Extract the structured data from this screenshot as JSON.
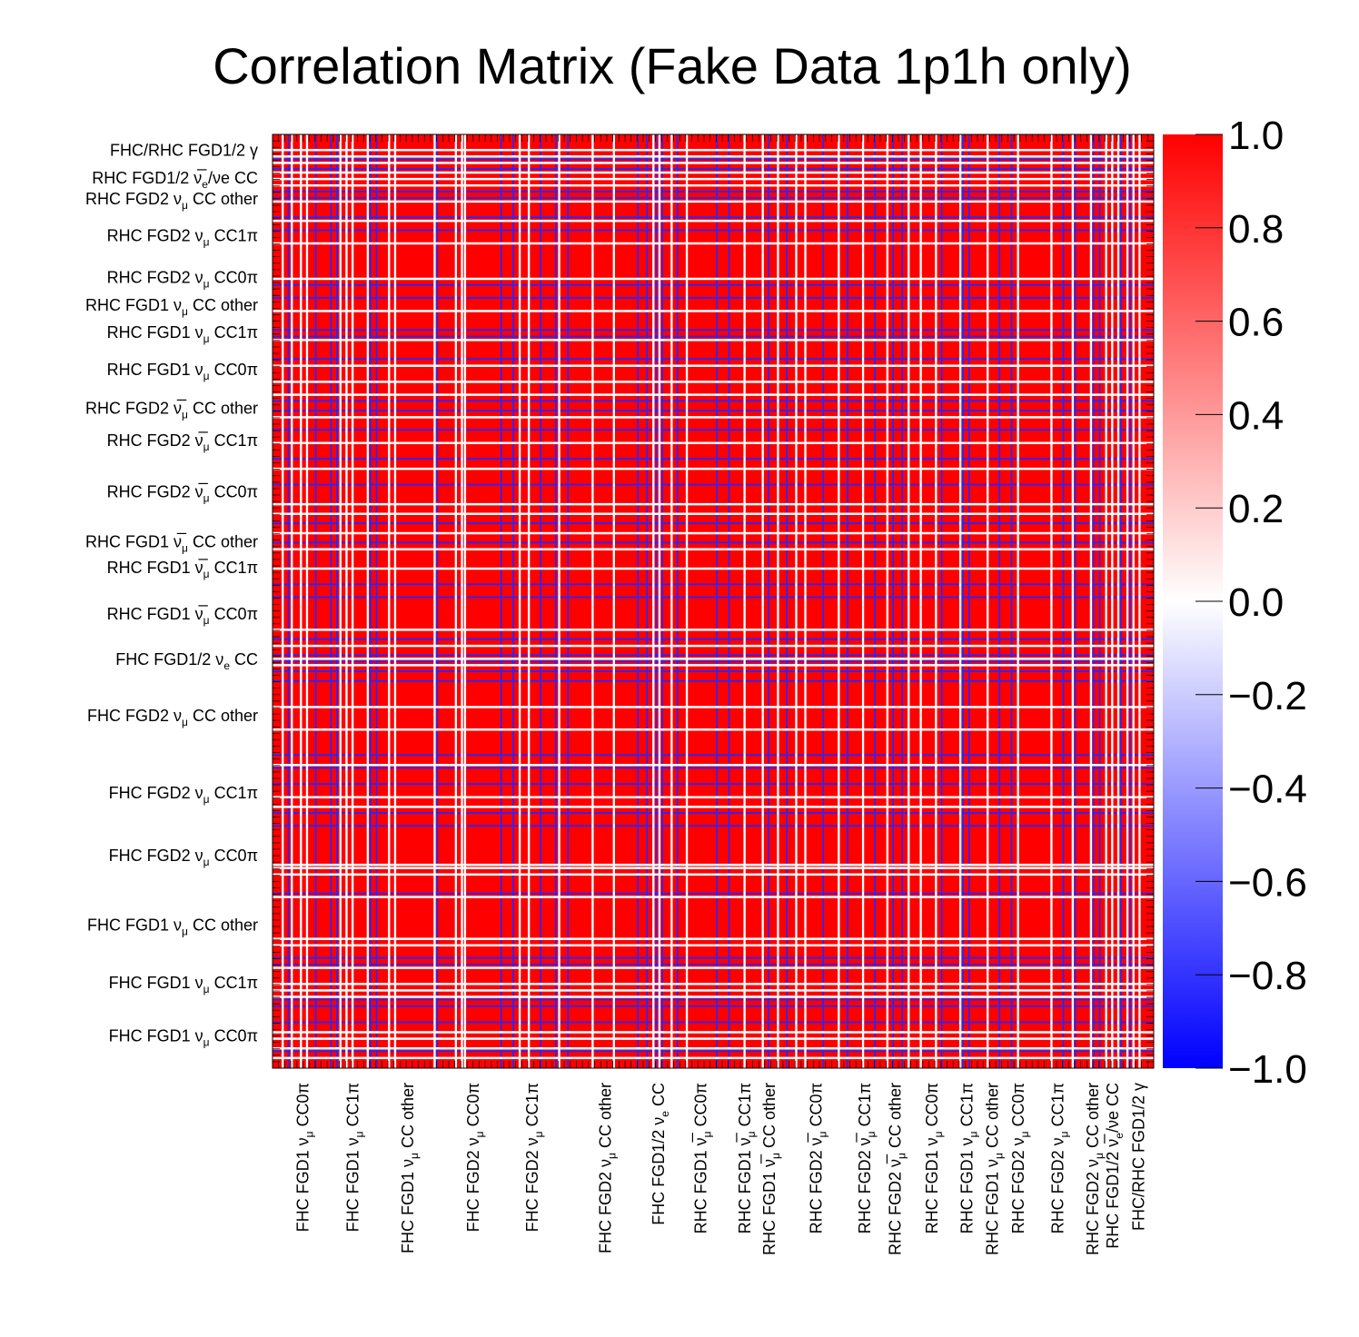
{
  "chart_data": {
    "type": "heatmap",
    "title": "Correlation Matrix (Fake Data 1p1h only)",
    "zlim": [
      -1.0,
      1.0
    ],
    "color_scale": {
      "min_color": "#0000ff",
      "mid_color": "#ffffff",
      "max_color": "#ff0000"
    },
    "colorbar_ticks": [
      "1.0",
      "0.8",
      "0.6",
      "0.4",
      "0.2",
      "0.0",
      "−0.2",
      "−0.4",
      "−0.6",
      "−0.8",
      "−1.0"
    ],
    "colorbar_values": [
      1.0,
      0.8,
      0.6,
      0.4,
      0.2,
      0.0,
      -0.2,
      -0.4,
      -0.6,
      -0.8,
      -1.0
    ],
    "n_bins": 580,
    "dominant_value": 1.0,
    "categories": [
      {
        "text": "FHC FGD1 ν",
        "sub": "μ",
        "rest": " CC0π",
        "start_bin": 0
      },
      {
        "text": "FHC FGD1 ν",
        "sub": "μ",
        "rest": " CC1π",
        "start_bin": 40
      },
      {
        "text": "FHC FGD1 ν",
        "sub": "μ",
        "rest": " CC other",
        "start_bin": 66
      },
      {
        "text": "FHC FGD2 ν",
        "sub": "μ",
        "rest": " CC0π",
        "start_bin": 112
      },
      {
        "text": "FHC FGD2 ν",
        "sub": "μ",
        "rest": " CC1π",
        "start_bin": 152
      },
      {
        "text": "FHC FGD2 ν",
        "sub": "μ",
        "rest": " CC other",
        "start_bin": 190
      },
      {
        "text": "FHC FGD1/2 ν",
        "sub": "e",
        "rest": " CC",
        "start_bin": 248
      },
      {
        "text": "RHC FGD1 ν̅",
        "sub": "μ",
        "rest": " CC0π",
        "start_bin": 260
      },
      {
        "text": "RHC FGD1 ν̅",
        "sub": "μ",
        "rest": " CC1π",
        "start_bin": 304
      },
      {
        "text": "RHC FGD1 ν̅",
        "sub": "μ",
        "rest": " CC other",
        "start_bin": 318
      },
      {
        "text": "RHC FGD2 ν̅",
        "sub": "μ",
        "rest": " CC0π",
        "start_bin": 336
      },
      {
        "text": "RHC FGD2 ν̅",
        "sub": "μ",
        "rest": " CC1π",
        "start_bin": 380
      },
      {
        "text": "RHC FGD2 ν̅",
        "sub": "μ",
        "rest": " CC other",
        "start_bin": 400
      },
      {
        "text": "RHC FGD1 ν",
        "sub": "μ",
        "rest": " CC0π",
        "start_bin": 420
      },
      {
        "text": "RHC FGD1 ν",
        "sub": "μ",
        "rest": " CC1π",
        "start_bin": 448
      },
      {
        "text": "RHC FGD1 ν",
        "sub": "μ",
        "rest": " CC other",
        "start_bin": 466
      },
      {
        "text": "RHC FGD2 ν",
        "sub": "μ",
        "rest": " CC0π",
        "start_bin": 482
      },
      {
        "text": "RHC FGD2 ν",
        "sub": "μ",
        "rest": " CC1π",
        "start_bin": 500
      },
      {
        "text": "RHC FGD2 ν",
        "sub": "μ",
        "rest": " CC other",
        "start_bin": 534
      },
      {
        "text": "RHC FGD1/2 ν̅",
        "sub": "e",
        "rest": "/νe CC",
        "start_bin": 546
      },
      {
        "text": "FHC/RHC FGD1/2 γ",
        "sub": "",
        "rest": "",
        "start_bin": 560
      }
    ],
    "white_line_bins": [
      6,
      12,
      18,
      22,
      44,
      48,
      52,
      62,
      76,
      80,
      106,
      120,
      124,
      126,
      162,
      168,
      188,
      210,
      224,
      250,
      254,
      262,
      272,
      310,
      322,
      332,
      344,
      350,
      372,
      388,
      404,
      418,
      426,
      436,
      452,
      470,
      490,
      512,
      526,
      538,
      548,
      552,
      556,
      562,
      566,
      570
    ],
    "blue_line_bins": [
      10,
      28,
      38,
      42,
      64,
      68,
      108,
      150,
      158,
      176,
      186,
      194,
      240,
      246,
      252,
      256,
      266,
      292,
      300,
      326,
      338,
      362,
      378,
      396,
      408,
      414,
      440,
      454,
      458,
      478,
      486,
      520,
      528,
      540,
      544,
      558,
      564
    ]
  }
}
